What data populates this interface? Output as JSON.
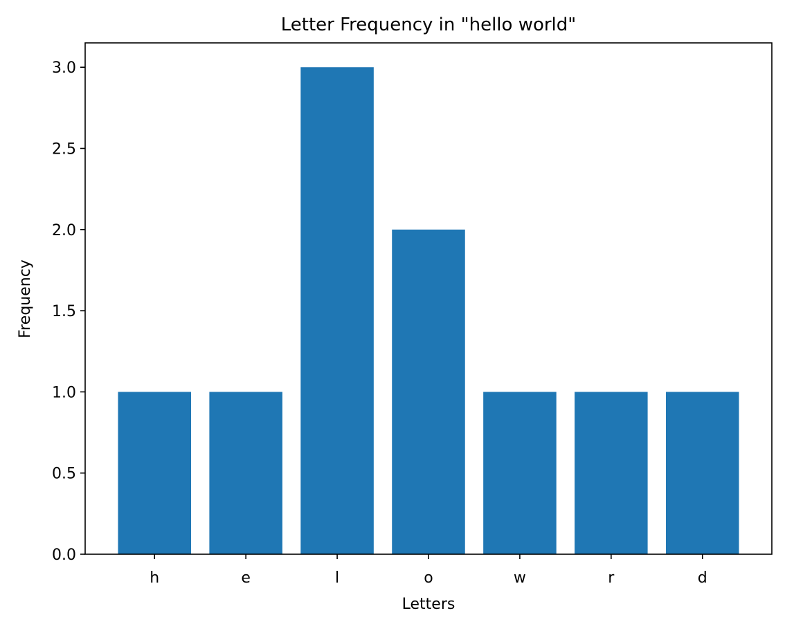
{
  "chart_data": {
    "type": "bar",
    "title": "Letter Frequency in \"hello world\"",
    "xlabel": "Letters",
    "ylabel": "Frequency",
    "categories": [
      "h",
      "e",
      "l",
      "o",
      "w",
      "r",
      "d"
    ],
    "values": [
      1,
      1,
      3,
      2,
      1,
      1,
      1
    ],
    "ylim": [
      0,
      3.15
    ],
    "yticks": [
      {
        "value": 0.0,
        "label": "0.0"
      },
      {
        "value": 0.5,
        "label": "0.5"
      },
      {
        "value": 1.0,
        "label": "1.0"
      },
      {
        "value": 1.5,
        "label": "1.5"
      },
      {
        "value": 2.0,
        "label": "2.0"
      },
      {
        "value": 2.5,
        "label": "2.5"
      },
      {
        "value": 3.0,
        "label": "3.0"
      }
    ],
    "grid": false,
    "legend": "none",
    "bar_color": "#1f77b4"
  }
}
